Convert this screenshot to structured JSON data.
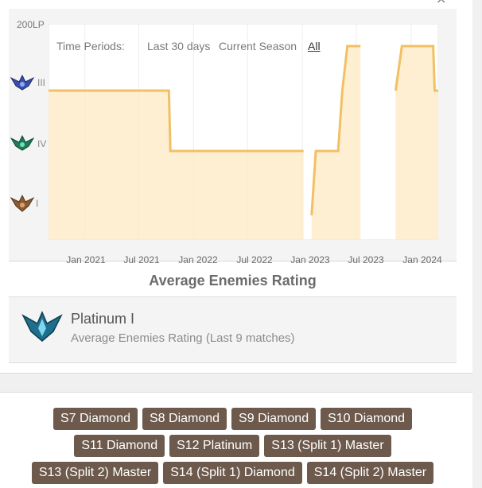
{
  "close_icon": "×",
  "chart": {
    "time_periods_label": "Time Periods:",
    "periods": [
      "Last 30 days",
      "Current Season",
      "All"
    ],
    "active_period": "All",
    "y_top_label": "200LP",
    "rank_labels": [
      "III",
      "IV",
      "I"
    ],
    "rank_emblems": [
      "diamond-emblem",
      "emerald-emblem",
      "bronze-emblem"
    ],
    "x_ticks": [
      "Jan 2021",
      "Jul 2021",
      "Jan 2022",
      "Jul 2022",
      "Jan 2023",
      "Jul 2023",
      "Jan 2024"
    ],
    "line_color": "#f2c064",
    "fill_color": "#fde9c4"
  },
  "chart_data": {
    "type": "area",
    "title": "",
    "xlabel": "",
    "ylabel": "",
    "x_ticks": [
      "Jan 2021",
      "Jul 2021",
      "Jan 2022",
      "Jul 2022",
      "Jan 2023",
      "Jul 2023",
      "Jan 2024"
    ],
    "y_tick_labels": [
      "200LP",
      "III",
      "IV",
      "I"
    ],
    "grid": true,
    "x_range": [
      "2020-09",
      "2024-04"
    ],
    "series": [
      {
        "segments": [
          [
            [
              "2020-09-01",
              "III"
            ],
            [
              "2021-10-10",
              "III"
            ],
            [
              "2021-10-15",
              "IV"
            ],
            [
              "2022-07-05",
              "IV"
            ],
            [
              "2022-07-10",
              "IV"
            ],
            [
              "2022-12-25",
              "IV"
            ],
            [
              "2023-01-05",
              "IV"
            ]
          ],
          [
            [
              "2023-02-01",
              "I"
            ],
            [
              "2023-02-15",
              "IV"
            ],
            [
              "2023-05-01",
              "IV"
            ],
            [
              "2023-05-15",
              "III"
            ],
            [
              "2023-06-01",
              "200LP"
            ],
            [
              "2023-07-15",
              "200LP"
            ]
          ],
          [
            [
              "2023-11-10",
              "III"
            ],
            [
              "2023-12-01",
              "200LP"
            ],
            [
              "2024-03-15",
              "200LP"
            ],
            [
              "2024-03-20",
              "III"
            ],
            [
              "2024-04-01",
              "III"
            ]
          ]
        ]
      }
    ]
  },
  "aer": {
    "title": "Average Enemies Rating",
    "rank": "Platinum I",
    "subtitle": "Average Enemies Rating (Last 9 matches)",
    "emblem": "platinum-emblem"
  },
  "seasons": {
    "row1": [
      "S7 Diamond",
      "S8 Diamond",
      "S9 Diamond",
      "S10 Diamond"
    ],
    "row2": [
      "S11 Diamond",
      "S12 Platinum",
      "S13 (Split 1) Master"
    ],
    "row3": [
      "S13 (Split 2) Master",
      "S14 (Split 1) Diamond",
      "S14 (Split 2) Master"
    ]
  }
}
